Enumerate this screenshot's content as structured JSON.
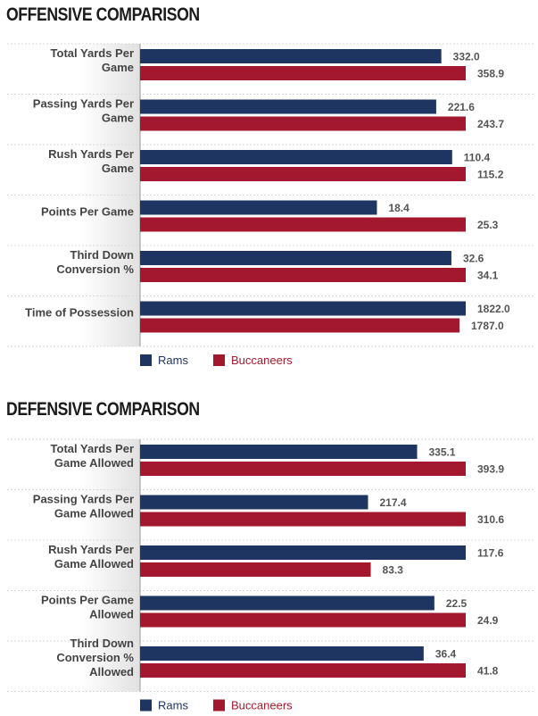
{
  "colors": {
    "rams": "#1e3461",
    "buccaneers": "#a4182f"
  },
  "chart_data": [
    {
      "type": "bar",
      "title": "OFFENSIVE COMPARISON",
      "orientation": "horizontal",
      "categories": [
        [
          "Total Yards Per",
          "Game"
        ],
        [
          "Passing Yards Per",
          "Game"
        ],
        [
          "Rush Yards Per",
          "Game"
        ],
        [
          "Points Per Game"
        ],
        [
          "Third Down",
          "Conversion %"
        ],
        [
          "Time of Possession"
        ]
      ],
      "series": [
        {
          "name": "Rams",
          "values": [
            332.0,
            221.6,
            110.4,
            18.4,
            32.6,
            1822.0
          ]
        },
        {
          "name": "Buccaneers",
          "values": [
            358.9,
            243.7,
            115.2,
            25.3,
            34.1,
            1787.0
          ]
        }
      ],
      "value_labels": [
        [
          "332.0",
          "221.6",
          "110.4",
          "18.4",
          "32.6",
          "1822.0"
        ],
        [
          "358.9",
          "243.7",
          "115.2",
          "25.3",
          "34.1",
          "1787.0"
        ]
      ],
      "scale": "each row scaled independently",
      "legend": "bottom-left"
    },
    {
      "type": "bar",
      "title": "DEFENSIVE COMPARISON",
      "orientation": "horizontal",
      "categories": [
        [
          "Total Yards Per",
          "Game Allowed"
        ],
        [
          "Passing Yards Per",
          "Game Allowed"
        ],
        [
          "Rush Yards Per",
          "Game Allowed"
        ],
        [
          "Points Per Game",
          "Allowed"
        ],
        [
          "Third Down",
          "Conversion %",
          "Allowed"
        ]
      ],
      "series": [
        {
          "name": "Rams",
          "values": [
            335.1,
            217.4,
            117.6,
            22.5,
            36.4
          ]
        },
        {
          "name": "Buccaneers",
          "values": [
            393.9,
            310.6,
            83.3,
            24.9,
            41.8
          ]
        }
      ],
      "value_labels": [
        [
          "335.1",
          "217.4",
          "117.6",
          "22.5",
          "36.4"
        ],
        [
          "393.9",
          "310.6",
          "83.3",
          "24.9",
          "41.8"
        ]
      ],
      "scale": "each row scaled independently",
      "legend": "bottom-left"
    }
  ]
}
